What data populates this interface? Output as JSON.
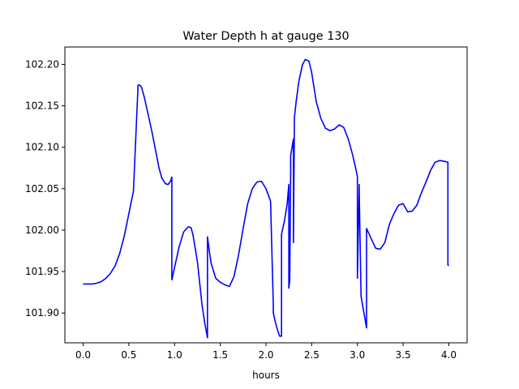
{
  "chart_data": {
    "type": "line",
    "title": "Water Depth h at gauge 130",
    "xlabel": "hours",
    "ylabel": "",
    "xlim": [
      -0.2,
      4.2
    ],
    "ylim": [
      101.864,
      102.221
    ],
    "xticks": [
      0.0,
      0.5,
      1.0,
      1.5,
      2.0,
      2.5,
      3.0,
      3.5,
      4.0
    ],
    "xtick_labels": [
      "0.0",
      "0.5",
      "1.0",
      "1.5",
      "2.0",
      "2.5",
      "3.0",
      "3.5",
      "4.0"
    ],
    "yticks": [
      101.9,
      101.95,
      102.0,
      102.05,
      102.1,
      102.15,
      102.2
    ],
    "ytick_labels": [
      "101.90",
      "101.95",
      "102.00",
      "102.05",
      "102.10",
      "102.15",
      "102.20"
    ],
    "grid": false,
    "series": [
      {
        "color": "#0000ff",
        "x": [
          0.0,
          0.1,
          0.15,
          0.2,
          0.25,
          0.3,
          0.35,
          0.4,
          0.45,
          0.5,
          0.55,
          0.6,
          0.6,
          0.62,
          0.64,
          0.67,
          0.7,
          0.75,
          0.8,
          0.83,
          0.86,
          0.9,
          0.93,
          0.96,
          0.97,
          0.97,
          1.0,
          1.05,
          1.1,
          1.15,
          1.18,
          1.2,
          1.25,
          1.3,
          1.33,
          1.36,
          1.36,
          1.38,
          1.4,
          1.45,
          1.5,
          1.55,
          1.6,
          1.65,
          1.7,
          1.75,
          1.8,
          1.85,
          1.9,
          1.95,
          2.0,
          2.05,
          2.08,
          2.08,
          2.1,
          2.13,
          2.15,
          2.17,
          2.17,
          2.2,
          2.23,
          2.25,
          2.25,
          2.26,
          2.27,
          2.27,
          2.3,
          2.3,
          2.31,
          2.31,
          2.33,
          2.36,
          2.4,
          2.43,
          2.47,
          2.5,
          2.55,
          2.6,
          2.65,
          2.7,
          2.75,
          2.8,
          2.85,
          2.9,
          2.95,
          3.0,
          3.0,
          3.02,
          3.02,
          3.04,
          3.1,
          3.1,
          3.15,
          3.2,
          3.25,
          3.3,
          3.35,
          3.4,
          3.45,
          3.5,
          3.55,
          3.6,
          3.65,
          3.7,
          3.75,
          3.8,
          3.85,
          3.9,
          3.95,
          3.99,
          3.99,
          4.0
        ],
        "y": [
          101.935,
          101.935,
          101.936,
          101.938,
          101.942,
          101.948,
          101.957,
          101.972,
          101.993,
          102.02,
          102.047,
          102.173,
          102.175,
          102.175,
          102.172,
          102.16,
          102.145,
          102.12,
          102.092,
          102.075,
          102.063,
          102.056,
          102.055,
          102.06,
          102.064,
          101.94,
          101.955,
          101.98,
          101.998,
          102.004,
          102.003,
          101.995,
          101.962,
          101.91,
          101.888,
          101.87,
          101.992,
          101.975,
          101.96,
          101.942,
          101.937,
          101.934,
          101.932,
          101.944,
          101.97,
          102.002,
          102.032,
          102.05,
          102.058,
          102.059,
          102.05,
          102.035,
          101.91,
          101.9,
          101.89,
          101.878,
          101.872,
          101.872,
          101.995,
          102.01,
          102.03,
          102.055,
          101.93,
          101.94,
          102.07,
          102.09,
          102.11,
          101.985,
          102.12,
          102.135,
          102.155,
          102.18,
          102.2,
          102.206,
          102.204,
          102.19,
          102.155,
          102.135,
          102.123,
          102.12,
          102.122,
          102.127,
          102.124,
          102.11,
          102.09,
          102.065,
          101.942,
          102.055,
          102.045,
          101.92,
          101.882,
          102.002,
          101.99,
          101.978,
          101.977,
          101.985,
          102.007,
          102.02,
          102.03,
          102.032,
          102.022,
          102.023,
          102.03,
          102.045,
          102.058,
          102.072,
          102.082,
          102.084,
          102.083,
          102.082,
          101.958,
          101.957
        ]
      }
    ]
  }
}
